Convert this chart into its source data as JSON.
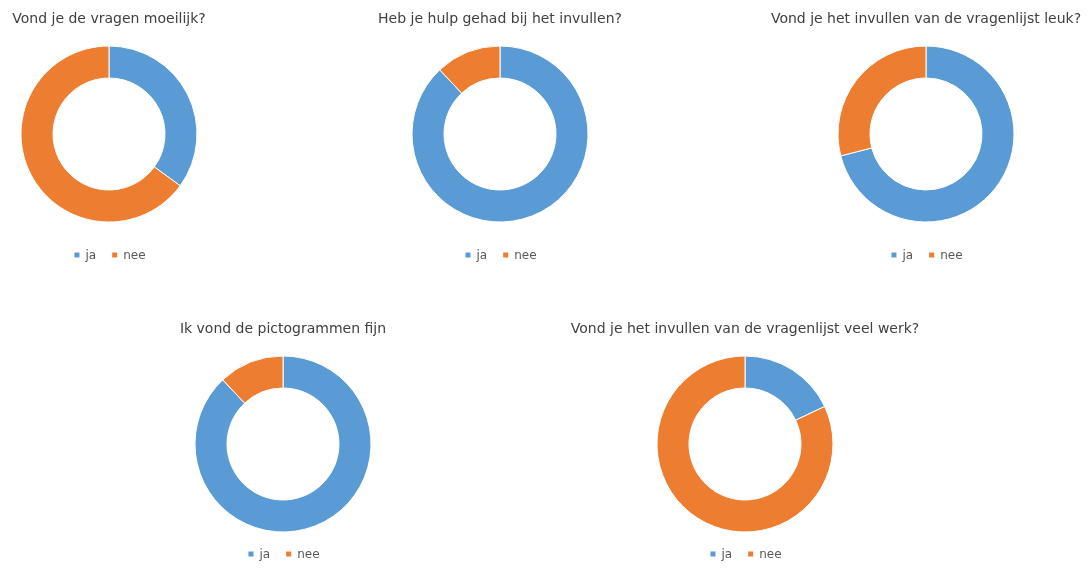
{
  "chart_data": [
    {
      "type": "donut",
      "title": "Vond je de vragen moeilijk?",
      "categories": [
        "ja",
        "nee"
      ],
      "values": [
        35,
        65
      ],
      "colors": [
        "#5b9bd5",
        "#ed7d31"
      ],
      "legend": "bottom"
    },
    {
      "type": "donut",
      "title": "Heb je hulp gehad bij het invullen?",
      "categories": [
        "ja",
        "nee"
      ],
      "values": [
        88,
        12
      ],
      "colors": [
        "#5b9bd5",
        "#ed7d31"
      ],
      "legend": "bottom"
    },
    {
      "type": "donut",
      "title": "Vond je het invullen van de vragenlijst leuk?",
      "categories": [
        "ja",
        "nee"
      ],
      "values": [
        71,
        29
      ],
      "colors": [
        "#5b9bd5",
        "#ed7d31"
      ],
      "legend": "bottom"
    },
    {
      "type": "donut",
      "title": "Ik vond de pictogrammen fijn",
      "categories": [
        "ja",
        "nee"
      ],
      "values": [
        88,
        12
      ],
      "colors": [
        "#5b9bd5",
        "#ed7d31"
      ],
      "legend": "bottom"
    },
    {
      "type": "donut",
      "title": "Vond je het invullen van de vragenlijst veel werk?",
      "categories": [
        "ja",
        "nee"
      ],
      "values": [
        18,
        82
      ],
      "colors": [
        "#5b9bd5",
        "#ed7d31"
      ],
      "legend": "bottom"
    }
  ]
}
